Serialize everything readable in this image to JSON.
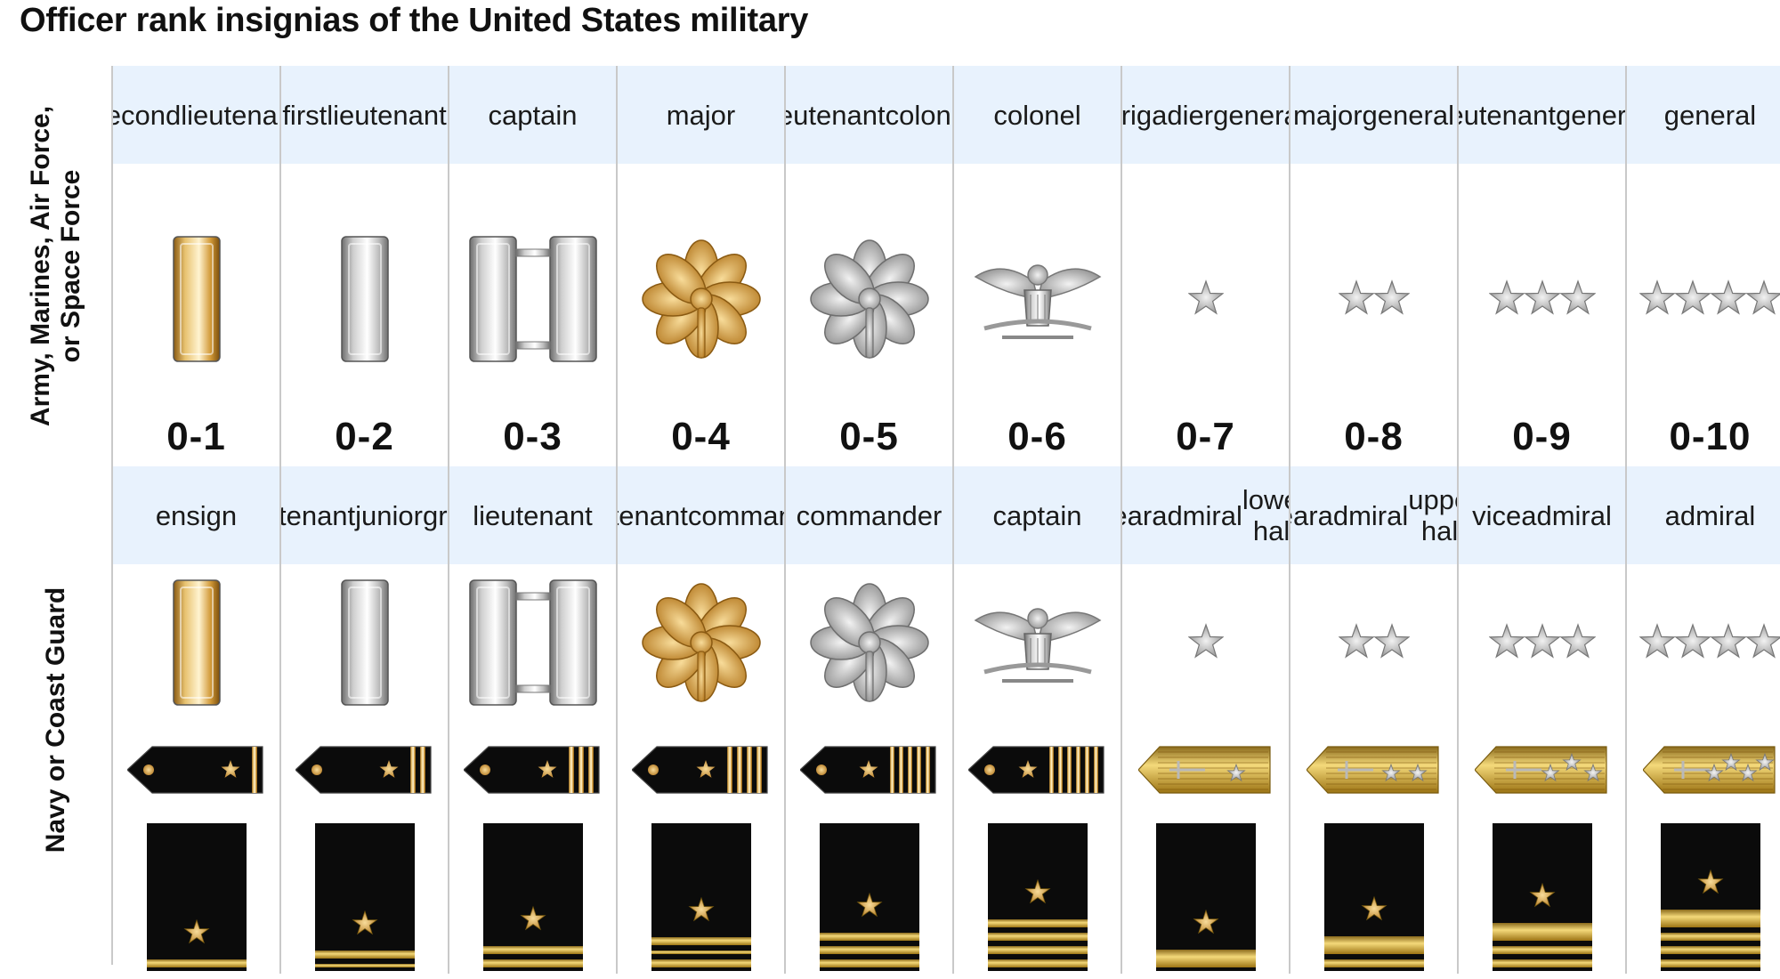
{
  "title": "Officer rank insignias of the United States military",
  "army_group_label": [
    "Army, Marines, Air Force,",
    "or Space Force"
  ],
  "navy_group_label": "Navy or Coast Guard",
  "colors": {
    "header_bg": "#e8f2fd",
    "gold": "#d9a640",
    "silver": "#c8c8c8",
    "navy_black": "#0b0b0b",
    "divider": "#c9c9c9"
  },
  "ranks": [
    {
      "army": [
        "second",
        "lieutenant"
      ],
      "navy": [
        "ensign"
      ],
      "pay": "0-1",
      "insignia": "gold-bar-icon",
      "color": "gold",
      "board": {
        "type": "black",
        "stripes": 1
      },
      "sleeve": {
        "stripes": [
          1
        ]
      }
    },
    {
      "army": [
        "first",
        "lieutenant"
      ],
      "navy": [
        "lieutenant",
        "junior",
        "grade"
      ],
      "pay": "0-2",
      "insignia": "silver-bar-icon",
      "color": "silver",
      "board": {
        "type": "black",
        "stripes": 2
      },
      "sleeve": {
        "stripes": [
          1,
          0
        ]
      }
    },
    {
      "army": [
        "captain"
      ],
      "navy": [
        "lieutenant"
      ],
      "pay": "0-3",
      "insignia": "silver-double-bar-icon",
      "color": "silver",
      "board": {
        "type": "black",
        "stripes": 3
      },
      "sleeve": {
        "stripes": [
          1,
          1
        ]
      }
    },
    {
      "army": [
        "major"
      ],
      "navy": [
        "lieutenant",
        "commander"
      ],
      "pay": "0-4",
      "insignia": "gold-oak-leaf-icon",
      "color": "gold",
      "board": {
        "type": "black",
        "stripes": 4
      },
      "sleeve": {
        "stripes": [
          1,
          0,
          1
        ]
      }
    },
    {
      "army": [
        "lieutenant",
        "colonel"
      ],
      "navy": [
        "commander"
      ],
      "pay": "0-5",
      "insignia": "silver-oak-leaf-icon",
      "color": "silver",
      "board": {
        "type": "black",
        "stripes": 5
      },
      "sleeve": {
        "stripes": [
          1,
          1,
          1
        ]
      }
    },
    {
      "army": [
        "colonel"
      ],
      "navy": [
        "captain"
      ],
      "pay": "0-6",
      "insignia": "silver-eagle-icon",
      "color": "silver",
      "board": {
        "type": "black",
        "stripes": 6
      },
      "sleeve": {
        "stripes": [
          1,
          1,
          1,
          1
        ]
      }
    },
    {
      "army": [
        "brigadier",
        "general"
      ],
      "navy": [
        "rear",
        "admiral",
        "lower half"
      ],
      "pay": "0-7",
      "insignia": "star-icon",
      "stars": 1,
      "color": "silver",
      "board": {
        "type": "gold",
        "stars": 1
      },
      "sleeve": {
        "stripes": [
          2
        ]
      }
    },
    {
      "army": [
        "major",
        "general"
      ],
      "navy": [
        "rear",
        "admiral",
        "upper half"
      ],
      "pay": "0-8",
      "insignia": "star-icon",
      "stars": 2,
      "color": "silver",
      "board": {
        "type": "gold",
        "stars": 2
      },
      "sleeve": {
        "stripes": [
          2,
          1
        ]
      }
    },
    {
      "army": [
        "lieutenant",
        "general"
      ],
      "navy": [
        "vice",
        "admiral"
      ],
      "pay": "0-9",
      "insignia": "star-icon",
      "stars": 3,
      "color": "silver",
      "board": {
        "type": "gold",
        "stars": 3
      },
      "sleeve": {
        "stripes": [
          2,
          1,
          1
        ]
      }
    },
    {
      "army": [
        "general"
      ],
      "navy": [
        "admiral"
      ],
      "pay": "0-10",
      "insignia": "star-icon",
      "stars": 4,
      "color": "silver",
      "board": {
        "type": "gold",
        "stars": 4
      },
      "sleeve": {
        "stripes": [
          2,
          1,
          1,
          1
        ]
      }
    }
  ]
}
